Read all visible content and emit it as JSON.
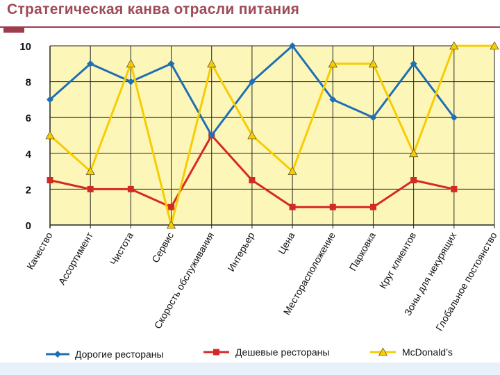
{
  "title": "Стратегическая канва отрасли питания",
  "colors": {
    "title": "#9e4a56",
    "plot_bg": "#fdf6b9",
    "grid": "#222222",
    "series": [
      "#1f6fb2",
      "#d42a24",
      "#f7cc00"
    ]
  },
  "chart_data": {
    "type": "line",
    "title": "",
    "xlabel": "",
    "ylabel": "",
    "ylim": [
      0,
      10
    ],
    "yticks": [
      0,
      2,
      4,
      6,
      8,
      10
    ],
    "grid": true,
    "legend_position": "bottom",
    "categories": [
      "Качество",
      "Ассортимент",
      "Чистота",
      "Сервис",
      "Скорость обслуживания",
      "Интерьер",
      "Цена",
      "Месторасположение",
      "Парковка",
      "Круг клиентов",
      "Зоны для некурящих",
      "Глобальное постоянство"
    ],
    "series": [
      {
        "name": "Дорогие рестораны",
        "marker": "diamond",
        "color": "#1f6fb2",
        "values": [
          7,
          9,
          8,
          9,
          5,
          8,
          10,
          7,
          6,
          9,
          6,
          null
        ]
      },
      {
        "name": "Дешевые рестораны",
        "marker": "square",
        "color": "#d42a24",
        "values": [
          2.5,
          2,
          2,
          1,
          5,
          2.5,
          1,
          1,
          1,
          2.5,
          2,
          null
        ]
      },
      {
        "name": "McDonald’s",
        "marker": "triangle",
        "color": "#f7cc00",
        "values": [
          5,
          3,
          9,
          0,
          9,
          5,
          3,
          9,
          9,
          4,
          10,
          10
        ]
      }
    ]
  }
}
